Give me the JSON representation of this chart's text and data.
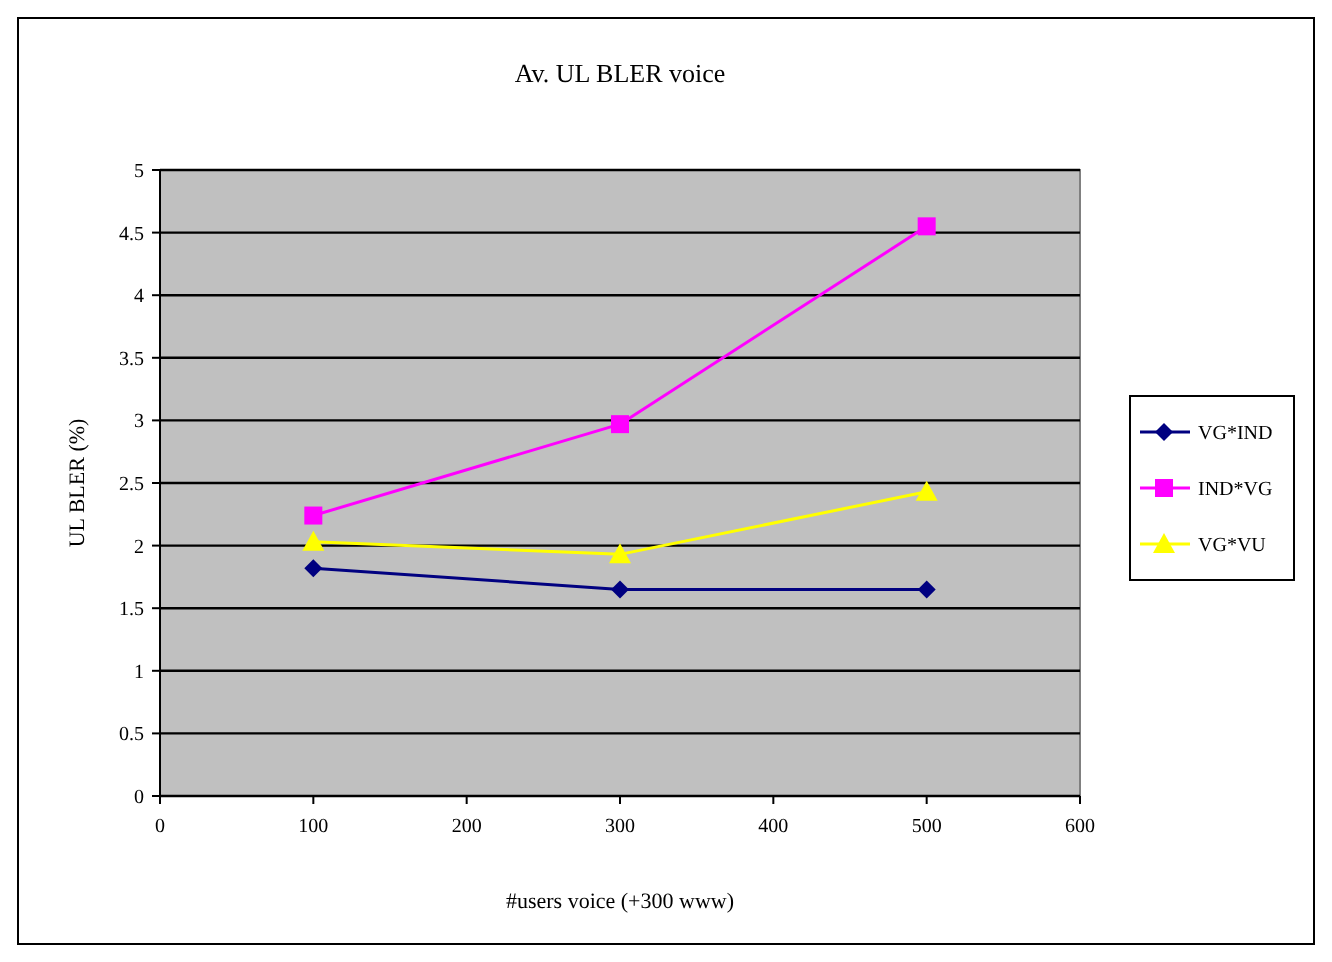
{
  "chart_data": {
    "type": "line",
    "title": "Av. UL BLER voice",
    "xlabel": "#users voice (+300 www)",
    "ylabel": "UL BLER (%)",
    "x": [
      100,
      300,
      500
    ],
    "series": [
      {
        "name": "VG*IND",
        "color": "#000080",
        "values": [
          1.82,
          1.65,
          1.65
        ],
        "marker": "diamond"
      },
      {
        "name": "IND*VG",
        "color": "#ff00ff",
        "values": [
          2.24,
          2.97,
          4.55
        ],
        "marker": "square"
      },
      {
        "name": "VG*VU",
        "color": "#ffff00",
        "values": [
          2.03,
          1.93,
          2.43
        ],
        "marker": "triangle"
      }
    ],
    "xlim": [
      0,
      600
    ],
    "xticks": [
      0,
      100,
      200,
      300,
      400,
      500,
      600
    ],
    "ylim": [
      0,
      5
    ],
    "yticks": [
      0,
      {
        "value": 0.5,
        "label": "0.5"
      },
      1,
      1.5,
      2,
      2.5,
      3,
      3.5,
      4,
      4.5,
      5
    ],
    "grid": "y",
    "legend": "right",
    "line_style": "solid"
  }
}
